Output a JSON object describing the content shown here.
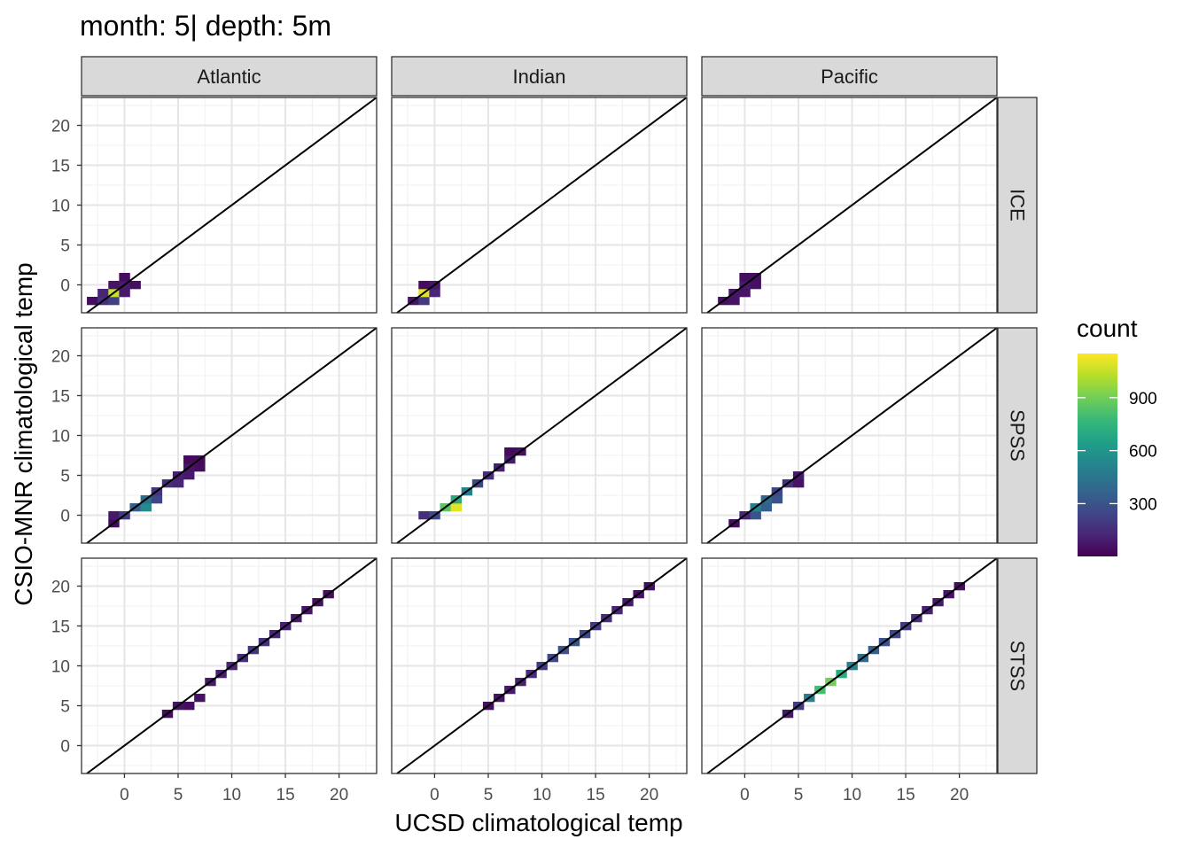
{
  "title": "month: 5| depth: 5m",
  "chart_data": {
    "type": "heatmap",
    "facet_columns": [
      "Atlantic",
      "Indian",
      "Pacific"
    ],
    "facet_rows": [
      "ICE",
      "SPSS",
      "STSS"
    ],
    "xlabel": "UCSD climatological temp",
    "ylabel": "CSIO-MNR climatological temp",
    "xlim": [
      -4,
      23.5
    ],
    "ylim": [
      -3.5,
      23.5
    ],
    "x_ticks": [
      0,
      5,
      10,
      15,
      20
    ],
    "y_ticks": [
      0,
      5,
      10,
      15,
      20
    ],
    "bin_width": 1,
    "reference_line": "y = x",
    "grid": true,
    "legend": {
      "title": "count",
      "position": "right",
      "ticks": [
        300,
        600,
        900
      ],
      "range": [
        1,
        1150
      ],
      "colors": [
        "#440154",
        "#482878",
        "#3e4989",
        "#31688e",
        "#26828e",
        "#1f9e89",
        "#35b779",
        "#6ece58",
        "#b5de2b",
        "#fde725"
      ]
    },
    "panels": [
      {
        "column": "Atlantic",
        "row": "ICE",
        "bins": [
          [
            -3,
            -2,
            40
          ],
          [
            -2,
            -2,
            150
          ],
          [
            -2,
            -1,
            120
          ],
          [
            -1,
            -2,
            220
          ],
          [
            -1,
            -1,
            1050
          ],
          [
            -1,
            0,
            60
          ],
          [
            0,
            -1,
            80
          ],
          [
            0,
            0,
            90
          ],
          [
            0,
            1,
            40
          ],
          [
            1,
            0,
            50
          ]
        ]
      },
      {
        "column": "Indian",
        "row": "ICE",
        "bins": [
          [
            -2,
            -2,
            60
          ],
          [
            -1,
            -2,
            200
          ],
          [
            -1,
            -1,
            1100
          ],
          [
            0,
            -1,
            120
          ],
          [
            0,
            0,
            70
          ],
          [
            -1,
            0,
            40
          ]
        ]
      },
      {
        "column": "Pacific",
        "row": "ICE",
        "bins": [
          [
            -2,
            -2,
            50
          ],
          [
            -1,
            -2,
            60
          ],
          [
            -1,
            -1,
            70
          ],
          [
            0,
            -1,
            60
          ],
          [
            0,
            0,
            80
          ],
          [
            1,
            0,
            50
          ],
          [
            1,
            1,
            40
          ],
          [
            0,
            1,
            40
          ]
        ]
      },
      {
        "column": "Atlantic",
        "row": "SPSS",
        "bins": [
          [
            -1,
            -1,
            30
          ],
          [
            -1,
            0,
            80
          ],
          [
            0,
            0,
            200
          ],
          [
            1,
            1,
            350
          ],
          [
            2,
            1,
            550
          ],
          [
            2,
            2,
            420
          ],
          [
            3,
            2,
            250
          ],
          [
            3,
            3,
            180
          ],
          [
            4,
            4,
            150
          ],
          [
            5,
            4,
            120
          ],
          [
            5,
            5,
            100
          ],
          [
            6,
            5,
            80
          ],
          [
            6,
            6,
            60
          ],
          [
            7,
            6,
            40
          ],
          [
            7,
            7,
            30
          ],
          [
            6,
            7,
            30
          ]
        ]
      },
      {
        "column": "Indian",
        "row": "SPSS",
        "bins": [
          [
            -1,
            0,
            150
          ],
          [
            0,
            0,
            250
          ],
          [
            1,
            1,
            850
          ],
          [
            2,
            1,
            1100
          ],
          [
            2,
            2,
            700
          ],
          [
            3,
            3,
            500
          ],
          [
            4,
            4,
            250
          ],
          [
            5,
            5,
            150
          ],
          [
            6,
            6,
            100
          ],
          [
            7,
            7,
            80
          ],
          [
            8,
            8,
            50
          ],
          [
            7,
            8,
            30
          ]
        ]
      },
      {
        "column": "Pacific",
        "row": "SPSS",
        "bins": [
          [
            -1,
            -1,
            40
          ],
          [
            0,
            0,
            120
          ],
          [
            1,
            0,
            300
          ],
          [
            1,
            1,
            500
          ],
          [
            2,
            1,
            350
          ],
          [
            2,
            2,
            400
          ],
          [
            3,
            2,
            300
          ],
          [
            3,
            3,
            250
          ],
          [
            4,
            4,
            150
          ],
          [
            5,
            5,
            80
          ],
          [
            5,
            4,
            60
          ]
        ]
      },
      {
        "column": "Atlantic",
        "row": "STSS",
        "bins": [
          [
            4,
            4,
            40
          ],
          [
            5,
            5,
            60
          ],
          [
            6,
            5,
            40
          ],
          [
            7,
            6,
            60
          ],
          [
            8,
            8,
            80
          ],
          [
            9,
            9,
            100
          ],
          [
            10,
            10,
            120
          ],
          [
            11,
            11,
            150
          ],
          [
            12,
            12,
            180
          ],
          [
            13,
            13,
            160
          ],
          [
            14,
            14,
            120
          ],
          [
            15,
            15,
            100
          ],
          [
            16,
            16,
            80
          ],
          [
            17,
            17,
            60
          ],
          [
            18,
            18,
            50
          ],
          [
            19,
            19,
            40
          ]
        ]
      },
      {
        "column": "Indian",
        "row": "STSS",
        "bins": [
          [
            5,
            5,
            40
          ],
          [
            6,
            6,
            60
          ],
          [
            7,
            7,
            80
          ],
          [
            8,
            8,
            100
          ],
          [
            9,
            9,
            150
          ],
          [
            10,
            10,
            200
          ],
          [
            11,
            11,
            250
          ],
          [
            12,
            12,
            300
          ],
          [
            13,
            13,
            300
          ],
          [
            14,
            14,
            250
          ],
          [
            15,
            15,
            200
          ],
          [
            16,
            16,
            150
          ],
          [
            17,
            17,
            120
          ],
          [
            18,
            18,
            80
          ],
          [
            19,
            19,
            60
          ],
          [
            20,
            20,
            40
          ]
        ]
      },
      {
        "column": "Pacific",
        "row": "STSS",
        "bins": [
          [
            4,
            4,
            80
          ],
          [
            5,
            5,
            200
          ],
          [
            6,
            6,
            500
          ],
          [
            7,
            7,
            800
          ],
          [
            8,
            8,
            900
          ],
          [
            9,
            9,
            700
          ],
          [
            10,
            10,
            500
          ],
          [
            11,
            11,
            400
          ],
          [
            12,
            12,
            350
          ],
          [
            13,
            13,
            300
          ],
          [
            14,
            14,
            250
          ],
          [
            15,
            15,
            200
          ],
          [
            16,
            16,
            150
          ],
          [
            17,
            17,
            100
          ],
          [
            18,
            18,
            80
          ],
          [
            19,
            19,
            60
          ],
          [
            20,
            20,
            40
          ]
        ]
      }
    ]
  }
}
